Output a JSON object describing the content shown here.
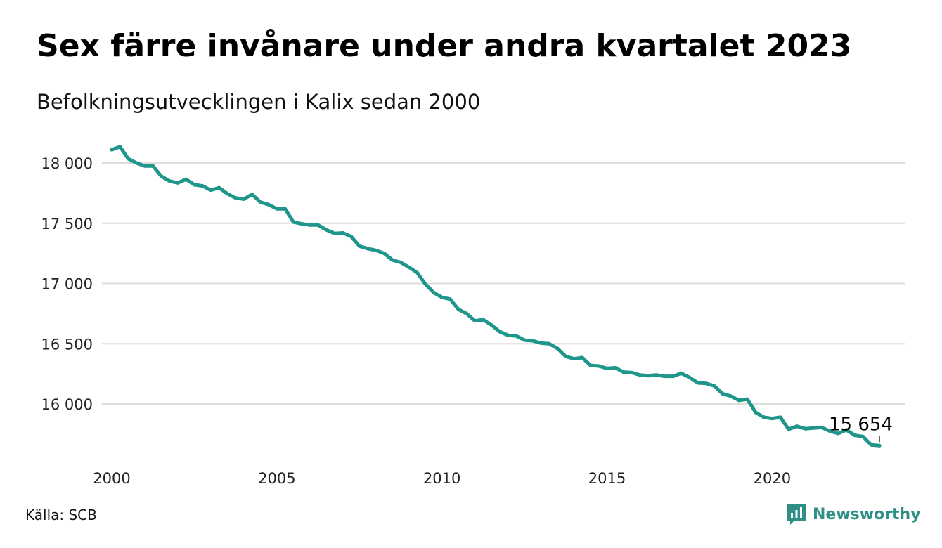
{
  "title": "Sex färre invånare under andra kvartalet 2023",
  "subtitle": "Befolkningsutvecklingen i Kalix sedan 2000",
  "source": "Källa: SCB",
  "brand": "Newsworthy",
  "colors": {
    "line": "#1f968b",
    "grid": "#dddddd",
    "brand": "#2f8f86"
  },
  "chart_data": {
    "type": "line",
    "title": "Sex färre invånare under andra kvartalet 2023",
    "subtitle": "Befolkningsutvecklingen i Kalix sedan 2000",
    "xlabel": "",
    "ylabel": "",
    "xlim": [
      2000,
      2023.5
    ],
    "ylim": [
      15600,
      18150
    ],
    "y_ticks": [
      16000,
      16500,
      17000,
      17500,
      18000
    ],
    "y_tick_labels": [
      "16 000",
      "16 500",
      "17 000",
      "17 500",
      "18 000"
    ],
    "x_ticks": [
      2000,
      2005,
      2010,
      2015,
      2020
    ],
    "x_tick_labels": [
      "2000",
      "2005",
      "2010",
      "2015",
      "2020"
    ],
    "grid": "horizontal",
    "annotation": {
      "label": "15 654",
      "x": 2023.25,
      "y": 15654
    },
    "series": [
      {
        "x": [
          2000.0,
          2000.25,
          2000.5,
          2000.75,
          2001.0,
          2001.25,
          2001.5,
          2001.75,
          2002.0,
          2002.25,
          2002.5,
          2002.75,
          2003.0,
          2003.25,
          2003.5,
          2003.75,
          2004.0,
          2004.25,
          2004.5,
          2004.75,
          2005.0,
          2005.25,
          2005.5,
          2005.75,
          2006.0,
          2006.25,
          2006.5,
          2006.75,
          2007.0,
          2007.25,
          2007.5,
          2007.75,
          2008.0,
          2008.25,
          2008.5,
          2008.75,
          2009.0,
          2009.25,
          2009.5,
          2009.75,
          2010.0,
          2010.25,
          2010.5,
          2010.75,
          2011.0,
          2011.25,
          2011.5,
          2011.75,
          2012.0,
          2012.25,
          2012.5,
          2012.75,
          2013.0,
          2013.25,
          2013.5,
          2013.75,
          2014.0,
          2014.25,
          2014.5,
          2014.75,
          2015.0,
          2015.25,
          2015.5,
          2015.75,
          2016.0,
          2016.25,
          2016.5,
          2016.75,
          2017.0,
          2017.25,
          2017.5,
          2017.75,
          2018.0,
          2018.25,
          2018.5,
          2018.75,
          2019.0,
          2019.25,
          2019.5,
          2019.75,
          2020.0,
          2020.25,
          2020.5,
          2020.75,
          2021.0,
          2021.25,
          2021.5,
          2021.75,
          2022.0,
          2022.25,
          2022.5,
          2022.75,
          2023.0,
          2023.25
        ],
        "values": [
          18110,
          18135,
          18035,
          18000,
          17975,
          17975,
          17890,
          17850,
          17835,
          17865,
          17820,
          17810,
          17775,
          17795,
          17745,
          17710,
          17700,
          17740,
          17675,
          17655,
          17620,
          17620,
          17510,
          17495,
          17485,
          17485,
          17445,
          17415,
          17420,
          17390,
          17310,
          17290,
          17275,
          17250,
          17195,
          17175,
          17135,
          17090,
          16995,
          16925,
          16885,
          16870,
          16785,
          16750,
          16690,
          16700,
          16655,
          16600,
          16570,
          16565,
          16530,
          16525,
          16505,
          16500,
          16460,
          16395,
          16375,
          16385,
          16320,
          16315,
          16295,
          16300,
          16265,
          16260,
          16240,
          16235,
          16240,
          16230,
          16230,
          16255,
          16220,
          16175,
          16170,
          16150,
          16085,
          16065,
          16030,
          16040,
          15930,
          15890,
          15880,
          15890,
          15790,
          15815,
          15795,
          15800,
          15805,
          15775,
          15755,
          15785,
          15740,
          15730,
          15660,
          15654
        ]
      }
    ]
  }
}
